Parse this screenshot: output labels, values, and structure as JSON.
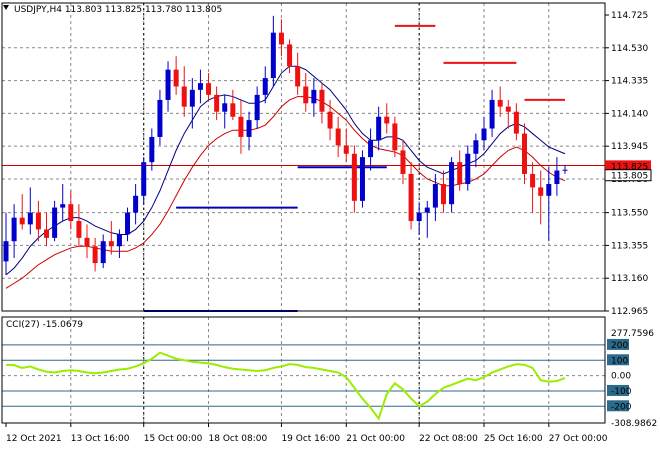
{
  "header": {
    "symbol_line": "USDJPY,H4  113.803 113.825 113.780 113.805",
    "indicator_line": "CCI(27) -15.0679"
  },
  "chart_data": [
    {
      "type": "candlestick",
      "symbol": "USDJPY",
      "timeframe": "H4",
      "ohlc_header": {
        "open": 113.803,
        "high": 113.825,
        "low": 113.78,
        "close": 113.805
      },
      "ylim": [
        112.965,
        114.725
      ],
      "y_ticks": [
        "114.725",
        "114.530",
        "114.335",
        "114.140",
        "113.945",
        "113.750",
        "113.550",
        "113.355",
        "113.160",
        "112.965"
      ],
      "x_ticks": [
        "12 Oct 2021",
        "13 Oct 16:00",
        "15 Oct 00:00",
        "18 Oct 08:00",
        "19 Oct 16:00",
        "21 Oct 00:00",
        "22 Oct 08:00",
        "25 Oct 16:00",
        "27 Oct 00:00"
      ],
      "current_price": {
        "label": "113.805",
        "value": 113.805
      },
      "ask_price": {
        "label": "113.825",
        "value": 113.825
      },
      "horizontal_line": {
        "value": 113.83,
        "color": "#cc0000"
      },
      "grid": true,
      "up_color": "#0000cc",
      "down_color": "#ee1111",
      "candles": [
        [
          113.26,
          113.55,
          113.18,
          113.38
        ],
        [
          113.38,
          113.6,
          113.28,
          113.52
        ],
        [
          113.52,
          113.66,
          113.45,
          113.48
        ],
        [
          113.48,
          113.7,
          113.42,
          113.55
        ],
        [
          113.55,
          113.62,
          113.38,
          113.45
        ],
        [
          113.45,
          113.55,
          113.35,
          113.4
        ],
        [
          113.4,
          113.62,
          113.38,
          113.58
        ],
        [
          113.58,
          113.72,
          113.5,
          113.6
        ],
        [
          113.6,
          113.68,
          113.45,
          113.5
        ],
        [
          113.5,
          113.6,
          113.35,
          113.4
        ],
        [
          113.4,
          113.48,
          113.28,
          113.35
        ],
        [
          113.35,
          113.4,
          113.2,
          113.25
        ],
        [
          113.25,
          113.42,
          113.22,
          113.38
        ],
        [
          113.38,
          113.5,
          113.3,
          113.35
        ],
        [
          113.35,
          113.45,
          113.28,
          113.42
        ],
        [
          113.42,
          113.58,
          113.38,
          113.55
        ],
        [
          113.55,
          113.72,
          113.48,
          113.65
        ],
        [
          113.65,
          113.88,
          113.6,
          113.85
        ],
        [
          113.85,
          114.05,
          113.8,
          114.0
        ],
        [
          114.0,
          114.28,
          113.95,
          114.22
        ],
        [
          114.22,
          114.45,
          114.15,
          114.4
        ],
        [
          114.4,
          114.48,
          114.25,
          114.3
        ],
        [
          114.3,
          114.42,
          114.12,
          114.18
        ],
        [
          114.18,
          114.35,
          114.05,
          114.28
        ],
        [
          114.28,
          114.4,
          114.2,
          114.32
        ],
        [
          114.32,
          114.38,
          114.22,
          114.25
        ],
        [
          114.25,
          114.3,
          114.1,
          114.15
        ],
        [
          114.15,
          114.25,
          114.05,
          114.2
        ],
        [
          114.2,
          114.28,
          114.1,
          114.12
        ],
        [
          114.12,
          114.22,
          113.9,
          114.0
        ],
        [
          114.0,
          114.15,
          113.92,
          114.1
        ],
        [
          114.1,
          114.3,
          114.05,
          114.25
        ],
        [
          114.25,
          114.42,
          114.2,
          114.35
        ],
        [
          114.35,
          114.72,
          114.3,
          114.62
        ],
        [
          114.62,
          114.7,
          114.48,
          114.55
        ],
        [
          114.55,
          114.58,
          114.38,
          114.42
        ],
        [
          114.42,
          114.5,
          114.25,
          114.3
        ],
        [
          114.3,
          114.38,
          114.15,
          114.2
        ],
        [
          114.2,
          114.35,
          114.12,
          114.28
        ],
        [
          114.28,
          114.32,
          114.08,
          114.15
        ],
        [
          114.15,
          114.22,
          113.98,
          114.05
        ],
        [
          114.05,
          114.12,
          113.88,
          113.95
        ],
        [
          113.95,
          114.05,
          113.85,
          113.9
        ],
        [
          113.9,
          113.95,
          113.55,
          113.62
        ],
        [
          113.62,
          113.92,
          113.58,
          113.88
        ],
        [
          113.88,
          114.05,
          113.8,
          113.98
        ],
        [
          113.98,
          114.18,
          113.92,
          114.12
        ],
        [
          114.12,
          114.2,
          114.02,
          114.08
        ],
        [
          114.08,
          114.12,
          113.88,
          113.92
        ],
        [
          113.92,
          113.98,
          113.72,
          113.78
        ],
        [
          113.78,
          113.85,
          113.45,
          113.5
        ],
        [
          113.5,
          113.6,
          113.42,
          113.55
        ],
        [
          113.55,
          113.62,
          113.4,
          113.58
        ],
        [
          113.58,
          113.78,
          113.5,
          113.72
        ],
        [
          113.72,
          113.8,
          113.55,
          113.6
        ],
        [
          113.6,
          113.88,
          113.55,
          113.85
        ],
        [
          113.85,
          113.92,
          113.68,
          113.72
        ],
        [
          113.72,
          113.95,
          113.68,
          113.9
        ],
        [
          113.9,
          114.02,
          113.82,
          113.98
        ],
        [
          113.98,
          114.12,
          113.92,
          114.05
        ],
        [
          114.05,
          114.28,
          114.0,
          114.22
        ],
        [
          114.22,
          114.3,
          114.12,
          114.18
        ],
        [
          114.18,
          114.22,
          114.05,
          114.15
        ],
        [
          114.15,
          114.2,
          113.98,
          114.02
        ],
        [
          114.02,
          114.08,
          113.72,
          113.78
        ],
        [
          113.78,
          113.85,
          113.55,
          113.7
        ],
        [
          113.7,
          113.8,
          113.48,
          113.65
        ],
        [
          113.65,
          113.82,
          113.38,
          113.72
        ],
        [
          113.72,
          113.88,
          113.65,
          113.8
        ],
        [
          113.8,
          113.83,
          113.78,
          113.805
        ]
      ],
      "indicators": [
        {
          "type": "line",
          "color": "#000080",
          "values": [
            113.18,
            113.22,
            113.28,
            113.35,
            113.4,
            113.44,
            113.47,
            113.5,
            113.52,
            113.52,
            113.5,
            113.47,
            113.45,
            113.43,
            113.42,
            113.42,
            113.45,
            113.5,
            113.58,
            113.68,
            113.8,
            113.92,
            114.02,
            114.1,
            114.18,
            114.22,
            114.24,
            114.25,
            114.24,
            114.22,
            114.2,
            114.2,
            114.22,
            114.3,
            114.38,
            114.42,
            114.42,
            114.4,
            114.36,
            114.32,
            114.28,
            114.22,
            114.16,
            114.08,
            114.02,
            113.98,
            113.98,
            114.0,
            114.0,
            113.98,
            113.92,
            113.86,
            113.82,
            113.8,
            113.78,
            113.8,
            113.82,
            113.84,
            113.86,
            113.9,
            113.96,
            114.02,
            114.06,
            114.08,
            114.06,
            114.02,
            113.98,
            113.94,
            113.92,
            113.9
          ]
        },
        {
          "type": "line",
          "color": "#cc0000",
          "values": [
            113.1,
            113.13,
            113.16,
            113.2,
            113.24,
            113.27,
            113.3,
            113.32,
            113.34,
            113.35,
            113.35,
            113.34,
            113.33,
            113.32,
            113.32,
            113.32,
            113.34,
            113.37,
            113.42,
            113.48,
            113.56,
            113.65,
            113.74,
            113.82,
            113.89,
            113.95,
            113.99,
            114.02,
            114.04,
            114.04,
            114.04,
            114.05,
            114.07,
            114.12,
            114.18,
            114.22,
            114.24,
            114.24,
            114.23,
            114.21,
            114.18,
            114.14,
            114.1,
            114.04,
            113.99,
            113.95,
            113.93,
            113.92,
            113.91,
            113.89,
            113.84,
            113.79,
            113.75,
            113.73,
            113.71,
            113.71,
            113.72,
            113.73,
            113.75,
            113.78,
            113.83,
            113.88,
            113.92,
            113.94,
            113.92,
            113.88,
            113.83,
            113.79,
            113.76,
            113.74
          ]
        },
        {
          "type": "step",
          "color": "#0000bb",
          "segments": [
            [
              17,
              36,
              112.965
            ],
            [
              21,
              36,
              113.58
            ],
            [
              36,
              47,
              113.82
            ]
          ]
        },
        {
          "type": "step",
          "color": "#ee1111",
          "segments": [
            [
              48,
              53,
              114.66
            ],
            [
              54,
              63,
              114.44
            ],
            [
              64,
              69,
              114.22
            ]
          ]
        }
      ]
    },
    {
      "type": "line",
      "title": "CCI(27) -15.0679",
      "indicator": "CCI",
      "period": 27,
      "current_value": -15.0679,
      "color": "#99ee00",
      "ylim": [
        -308.9862,
        277.7596
      ],
      "y_ticks": [
        "277.7596",
        "200",
        "100",
        "0.00",
        "-100",
        "-200",
        "-308.9862"
      ],
      "levels": [
        200,
        100,
        -100,
        -200
      ],
      "values": [
        70,
        68,
        50,
        60,
        40,
        25,
        20,
        30,
        35,
        30,
        20,
        15,
        20,
        30,
        40,
        45,
        60,
        80,
        110,
        150,
        130,
        110,
        100,
        90,
        85,
        80,
        70,
        55,
        45,
        40,
        35,
        30,
        35,
        50,
        60,
        75,
        70,
        55,
        50,
        40,
        30,
        20,
        -10,
        -80,
        -150,
        -210,
        -280,
        -120,
        -50,
        -90,
        -150,
        -200,
        -170,
        -120,
        -80,
        -60,
        -40,
        -20,
        -30,
        -10,
        20,
        40,
        60,
        75,
        70,
        50,
        -30,
        -40,
        -35,
        -15
      ]
    }
  ]
}
